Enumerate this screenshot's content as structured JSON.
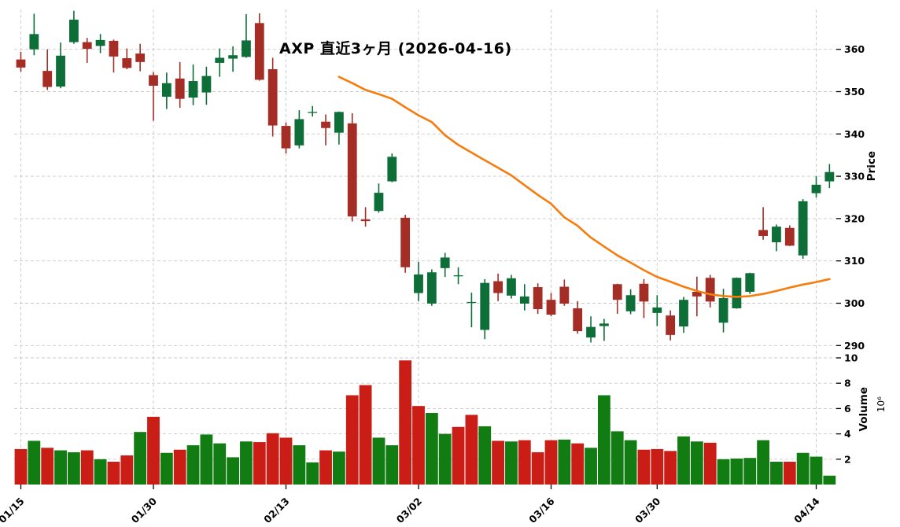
{
  "title": "AXP 直近3ヶ月 (2026-04-16)",
  "axes": {
    "price_label": "Price",
    "volume_label": "Volume",
    "volume_unit": "10⁶",
    "price_ticks": [
      290,
      300,
      310,
      320,
      330,
      340,
      350,
      360
    ],
    "volume_ticks": [
      2,
      4,
      6,
      8,
      10
    ],
    "date_ticks": [
      {
        "label": "01/15",
        "index": 0
      },
      {
        "label": "01/30",
        "index": 10
      },
      {
        "label": "02/13",
        "index": 20
      },
      {
        "label": "03/02",
        "index": 30
      },
      {
        "label": "03/16",
        "index": 40
      },
      {
        "label": "03/30",
        "index": 48
      },
      {
        "label": "04/14",
        "index": 60
      }
    ]
  },
  "chart_data": {
    "type": "candlestick_with_volume",
    "title": "AXP 直近3ヶ月 (2026-04-16)",
    "ylabel_price": "Price",
    "ylabel_volume": "Volume (10^6)",
    "price_ylim": [
      289.0,
      369.8
    ],
    "volume_ylim": [
      0,
      10.6
    ],
    "legend_position": "none",
    "grid": "dashed",
    "ohlc_order": [
      "open",
      "high",
      "low",
      "close"
    ],
    "candles": [
      [
        357.6,
        359.4,
        354.7,
        355.7
      ],
      [
        360.0,
        368.4,
        358.6,
        363.6
      ],
      [
        354.9,
        360.0,
        350.4,
        351.1
      ],
      [
        351.2,
        361.6,
        350.8,
        358.5
      ],
      [
        361.7,
        369.1,
        361.3,
        367.0
      ],
      [
        361.7,
        362.7,
        356.8,
        360.1
      ],
      [
        360.8,
        363.6,
        359.1,
        362.2
      ],
      [
        362.0,
        362.3,
        354.5,
        358.3
      ],
      [
        357.9,
        360.2,
        355.3,
        355.6
      ],
      [
        359.0,
        361.3,
        354.8,
        357.0
      ],
      [
        353.9,
        354.6,
        343.1,
        351.4
      ],
      [
        348.8,
        354.5,
        345.9,
        352.0
      ],
      [
        353.1,
        357.0,
        346.2,
        348.3
      ],
      [
        348.6,
        356.4,
        346.8,
        352.5
      ],
      [
        349.8,
        355.9,
        346.9,
        353.7
      ],
      [
        356.8,
        360.2,
        353.5,
        358.0
      ],
      [
        357.8,
        360.7,
        354.7,
        358.6
      ],
      [
        358.2,
        368.3,
        358.0,
        362.1
      ],
      [
        366.2,
        368.5,
        352.6,
        352.8
      ],
      [
        355.3,
        358.0,
        339.4,
        342.0
      ],
      [
        341.9,
        342.7,
        335.4,
        336.6
      ],
      [
        337.3,
        345.6,
        336.6,
        343.5
      ],
      [
        345.0,
        346.6,
        344.1,
        345.2
      ],
      [
        342.9,
        344.6,
        337.3,
        341.4
      ],
      [
        340.3,
        345.3,
        337.5,
        345.2
      ],
      [
        342.5,
        344.9,
        319.3,
        320.5
      ],
      [
        319.8,
        322.7,
        318.1,
        319.4
      ],
      [
        321.8,
        328.3,
        321.4,
        326.1
      ],
      [
        328.8,
        335.4,
        328.6,
        334.6
      ],
      [
        320.2,
        320.9,
        307.2,
        308.5
      ],
      [
        302.4,
        309.8,
        300.5,
        306.8
      ],
      [
        299.9,
        308.0,
        299.4,
        307.3
      ],
      [
        308.3,
        311.9,
        306.2,
        310.8
      ],
      [
        306.4,
        308.5,
        304.5,
        306.6
      ],
      [
        300.1,
        302.5,
        294.3,
        300.3
      ],
      [
        293.7,
        305.7,
        291.5,
        304.8
      ],
      [
        305.2,
        307.0,
        300.5,
        302.4
      ],
      [
        301.8,
        306.7,
        301.1,
        305.9
      ],
      [
        299.9,
        304.5,
        298.3,
        301.6
      ],
      [
        303.8,
        304.7,
        297.5,
        298.6
      ],
      [
        300.8,
        302.4,
        296.9,
        297.3
      ],
      [
        303.9,
        305.6,
        299.4,
        299.9
      ],
      [
        298.8,
        300.5,
        292.8,
        293.4
      ],
      [
        291.9,
        296.9,
        290.7,
        294.4
      ],
      [
        294.6,
        296.3,
        291.1,
        295.2
      ],
      [
        304.5,
        304.6,
        297.5,
        300.8
      ],
      [
        298.1,
        303.3,
        297.4,
        301.9
      ],
      [
        304.6,
        305.7,
        296.5,
        300.4
      ],
      [
        297.7,
        301.9,
        294.6,
        299.0
      ],
      [
        297.1,
        298.3,
        291.2,
        292.5
      ],
      [
        294.5,
        301.5,
        293.0,
        300.8
      ],
      [
        302.7,
        306.3,
        296.9,
        301.6
      ],
      [
        306.0,
        306.7,
        299.0,
        300.4
      ],
      [
        295.4,
        303.4,
        293.1,
        301.2
      ],
      [
        298.8,
        306.1,
        298.7,
        306.0
      ],
      [
        302.7,
        307.2,
        302.2,
        307.1
      ],
      [
        317.3,
        322.7,
        315.0,
        315.9
      ],
      [
        314.4,
        318.6,
        312.3,
        318.1
      ],
      [
        317.8,
        318.4,
        313.5,
        313.6
      ],
      [
        311.3,
        324.6,
        310.5,
        324.1
      ],
      [
        326.0,
        330.0,
        325.0,
        328.0
      ],
      [
        328.8,
        332.9,
        327.2,
        331.0
      ]
    ],
    "volume_millions": [
      2.8,
      3.45,
      2.9,
      2.7,
      2.55,
      2.7,
      2.0,
      1.8,
      2.3,
      4.15,
      5.35,
      2.5,
      2.75,
      3.1,
      3.95,
      3.25,
      2.15,
      3.4,
      3.35,
      4.05,
      3.7,
      3.1,
      1.75,
      2.7,
      2.6,
      7.05,
      7.85,
      3.7,
      3.1,
      9.8,
      6.2,
      5.65,
      4.0,
      4.55,
      5.5,
      4.6,
      3.45,
      3.4,
      3.5,
      2.55,
      3.5,
      3.55,
      3.25,
      2.9,
      7.05,
      4.2,
      3.5,
      2.75,
      2.8,
      2.65,
      3.8,
      3.4,
      3.3,
      2.0,
      2.05,
      2.1,
      3.5,
      1.8,
      1.8,
      2.5,
      2.2,
      0.7
    ],
    "ma25": [
      null,
      null,
      null,
      null,
      null,
      null,
      null,
      null,
      null,
      null,
      null,
      null,
      null,
      null,
      null,
      null,
      null,
      null,
      null,
      null,
      null,
      null,
      null,
      null,
      353.5,
      352.0,
      350.4,
      349.4,
      348.3,
      346.3,
      344.4,
      342.8,
      339.7,
      337.4,
      335.6,
      333.8,
      332.0,
      330.2,
      327.9,
      325.6,
      323.5,
      320.3,
      318.3,
      315.5,
      313.4,
      311.3,
      309.6,
      307.8,
      306.2,
      305.1,
      303.9,
      302.9,
      302.1,
      301.7,
      301.5,
      301.7,
      302.2,
      302.9,
      303.7,
      304.4,
      305.0,
      305.7
    ],
    "colors": {
      "candle_up": "#0d6e38",
      "candle_down": "#a42e26",
      "volume_up": "#107c12",
      "volume_down": "#ca1d15",
      "ma_line": "#f67c0e",
      "grid": "#c9c9c9",
      "text": "#000000",
      "background": "#ffffff"
    }
  }
}
